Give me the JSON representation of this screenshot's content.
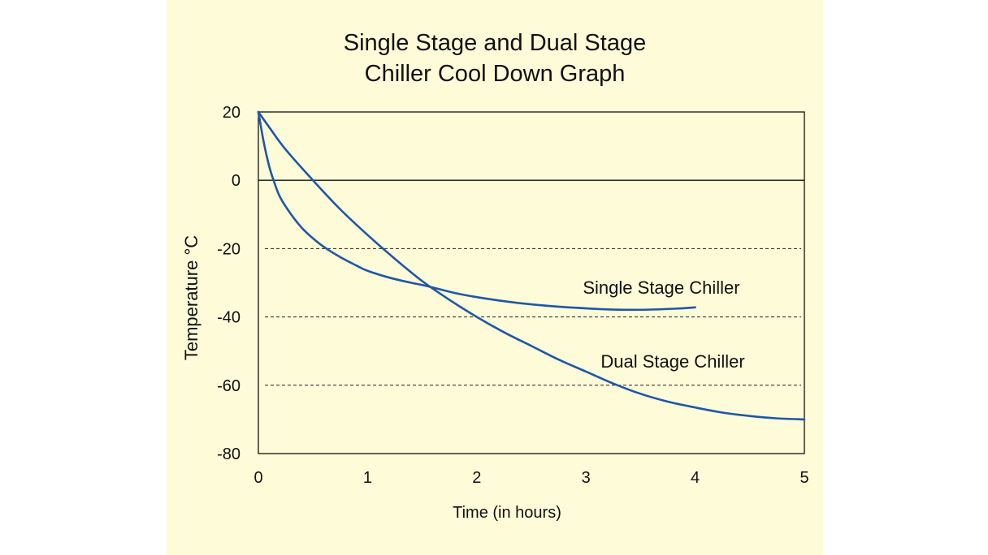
{
  "chart_data": {
    "type": "line",
    "title": [
      "Single Stage and Dual Stage",
      "Chiller Cool Down Graph"
    ],
    "xlabel": "Time (in hours)",
    "ylabel": "Temperature °C",
    "xlim": [
      0,
      5
    ],
    "ylim": [
      -80,
      20
    ],
    "x_ticks": [
      "0",
      "1",
      "2",
      "3",
      "4",
      "5"
    ],
    "y_ticks": [
      "20",
      "0",
      "-20",
      "-40",
      "-60",
      "-80"
    ],
    "grid": "dashed horizontal at -20, -40, -60; solid at 0",
    "series": [
      {
        "name": "Single Stage Chiller",
        "color": "#1f57a8",
        "x": [
          0,
          0.05,
          0.1,
          0.15,
          0.2,
          0.3,
          0.4,
          0.5,
          0.6,
          0.75,
          0.9,
          1.0,
          1.2,
          1.4,
          1.55,
          1.8,
          2.0,
          2.3,
          2.6,
          2.9,
          3.2,
          3.5,
          3.8,
          4.0
        ],
        "y": [
          20,
          11,
          4,
          -1,
          -5,
          -10,
          -14,
          -17,
          -19.5,
          -22.5,
          -25,
          -26.5,
          -28.5,
          -30,
          -31,
          -33,
          -34.2,
          -35.6,
          -36.6,
          -37.3,
          -37.8,
          -37.9,
          -37.6,
          -37.2
        ]
      },
      {
        "name": "Dual Stage Chiller",
        "color": "#1f57a8",
        "x": [
          0,
          0.1,
          0.25,
          0.5,
          0.75,
          1.0,
          1.25,
          1.5,
          1.75,
          2.0,
          2.25,
          2.5,
          2.75,
          3.0,
          3.25,
          3.5,
          3.75,
          4.0,
          4.25,
          4.5,
          4.75,
          5.0
        ],
        "y": [
          20,
          15.5,
          9,
          0,
          -8.5,
          -16,
          -23,
          -29.5,
          -35,
          -40,
          -44.5,
          -48.5,
          -52.5,
          -56,
          -59.5,
          -62.5,
          -64.8,
          -66.5,
          -68,
          -69,
          -69.7,
          -70
        ]
      }
    ],
    "annotations": [
      "Single Stage Chiller",
      "Dual Stage Chiller"
    ]
  }
}
